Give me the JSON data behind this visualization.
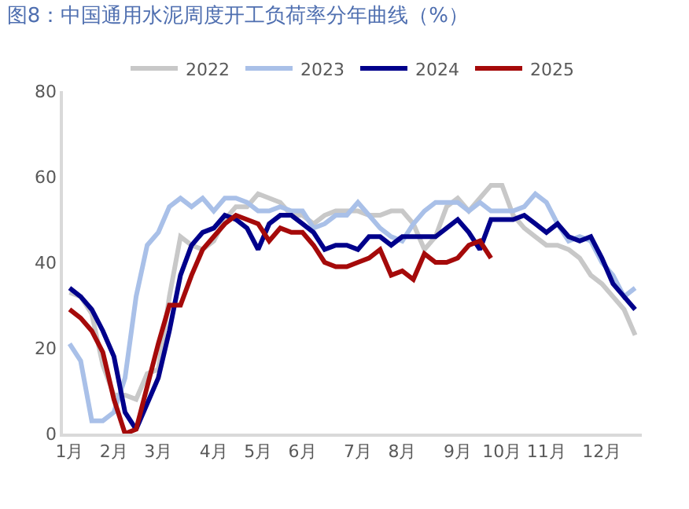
{
  "chart_data": {
    "type": "line",
    "title": "图8：中国通用水泥周度开工负荷率分年曲线（%）",
    "categories": [
      "1月",
      null,
      null,
      null,
      "2月",
      null,
      null,
      null,
      "3月",
      null,
      null,
      null,
      null,
      "4月",
      null,
      null,
      null,
      "5月",
      null,
      null,
      null,
      "6月",
      null,
      null,
      null,
      null,
      "7月",
      null,
      null,
      null,
      "8月",
      null,
      null,
      null,
      null,
      "9月",
      null,
      null,
      null,
      "10月",
      null,
      null,
      null,
      "11月",
      null,
      null,
      null,
      null,
      "12月",
      null,
      null,
      null
    ],
    "series": [
      {
        "name": "2022",
        "color": "#c8c8c8",
        "values": [
          33,
          32,
          28,
          16,
          9,
          9,
          8,
          14,
          15,
          32,
          46,
          44,
          43,
          45,
          50,
          53,
          53,
          56,
          55,
          54,
          51,
          51,
          49,
          51,
          52,
          52,
          52,
          51,
          51,
          52,
          52,
          49,
          43,
          46,
          53,
          55,
          52,
          55,
          58,
          58,
          51,
          48,
          46,
          44,
          44,
          43,
          41,
          37,
          35,
          32,
          29,
          23
        ]
      },
      {
        "name": "2023",
        "color": "#a9c0e8",
        "values": [
          21,
          17,
          3,
          3,
          5,
          13,
          32,
          44,
          47,
          53,
          55,
          53,
          55,
          52,
          55,
          55,
          54,
          52,
          52,
          53,
          52,
          52,
          48,
          49,
          51,
          51,
          54,
          51,
          48,
          46,
          45,
          49,
          52,
          54,
          54,
          54,
          52,
          54,
          52,
          52,
          52,
          53,
          56,
          54,
          49,
          45,
          46,
          45,
          40,
          37,
          32,
          34
        ]
      },
      {
        "name": "2024",
        "color": "#00008b",
        "values": [
          34,
          32,
          29,
          24,
          18,
          5,
          1,
          7,
          13,
          24,
          37,
          44,
          47,
          48,
          51,
          50,
          48,
          43,
          49,
          51,
          51,
          49,
          47,
          43,
          44,
          44,
          43,
          46,
          46,
          44,
          46,
          46,
          46,
          46,
          48,
          50,
          47,
          43,
          50,
          50,
          50,
          51,
          49,
          47,
          49,
          46,
          45,
          46,
          41,
          35,
          32,
          29
        ]
      },
      {
        "name": "2025",
        "color": "#a50a0a",
        "values": [
          29,
          27,
          24,
          19,
          8,
          0,
          1,
          11,
          21,
          30,
          30,
          37,
          43,
          46,
          49,
          51,
          50,
          49,
          45,
          48,
          47,
          47,
          44,
          40,
          39,
          39,
          40,
          41,
          43,
          37,
          38,
          36,
          42,
          40,
          40,
          41,
          44,
          45,
          41,
          null,
          null,
          null,
          null,
          null,
          null,
          null,
          null,
          null,
          null,
          null,
          null,
          null
        ]
      }
    ],
    "ylim": [
      0,
      80
    ],
    "yticks": [
      0,
      20,
      40,
      60,
      80
    ],
    "legend": "top",
    "marker": "none",
    "line_style": "solid"
  }
}
